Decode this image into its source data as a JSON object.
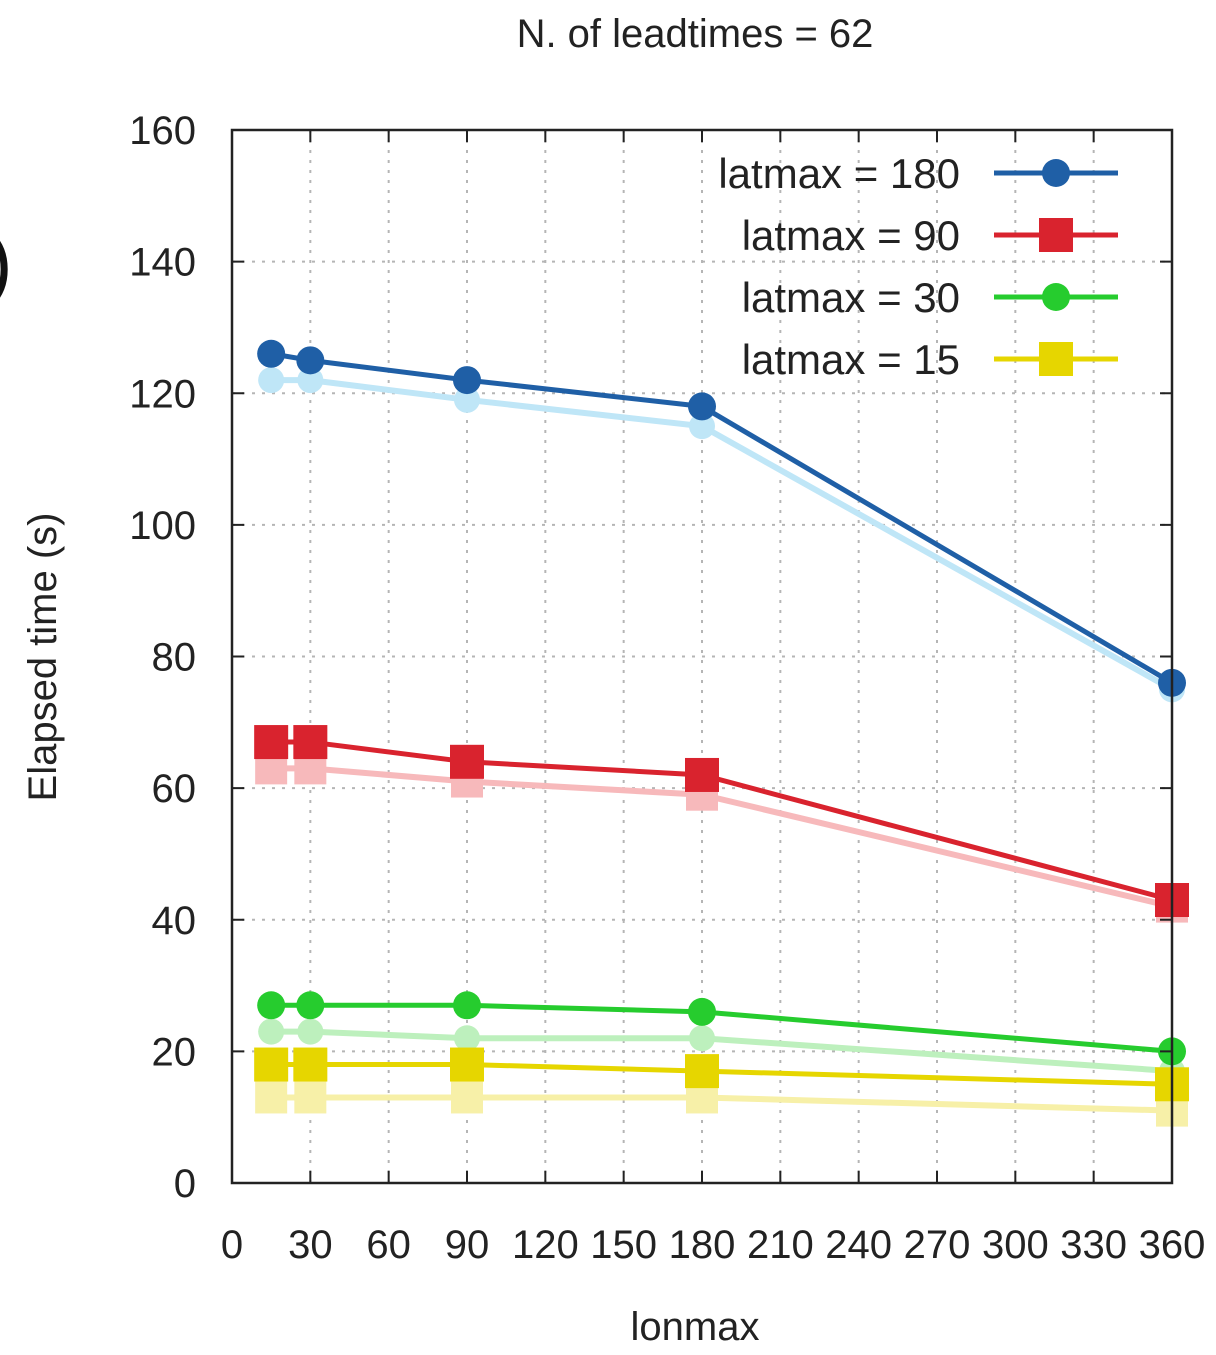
{
  "edge_fragment": ")",
  "chart_data": {
    "type": "line",
    "title": "N. of leadtimes = 62",
    "xlabel": "lonmax",
    "ylabel": "Elapsed time (s)",
    "xlim": [
      0,
      360
    ],
    "ylim": [
      0,
      160
    ],
    "xticks": [
      0,
      30,
      60,
      90,
      120,
      150,
      180,
      210,
      240,
      270,
      300,
      330,
      360
    ],
    "yticks": [
      0,
      20,
      40,
      60,
      80,
      100,
      120,
      140,
      160
    ],
    "grid": true,
    "legend_position": "top-right",
    "x": [
      15,
      30,
      90,
      180,
      360
    ],
    "series": [
      {
        "name": "latmax = 180",
        "color": "#1f5fa6",
        "faint_color": "#bfe6f7",
        "marker": "circle",
        "values": [
          126,
          125,
          122,
          118,
          76
        ],
        "faint_values": [
          122,
          122,
          119,
          115,
          75
        ]
      },
      {
        "name": "latmax = 90",
        "color": "#d9232e",
        "faint_color": "#f7b9bb",
        "marker": "square",
        "values": [
          67,
          67,
          64,
          62,
          43
        ],
        "faint_values": [
          63,
          63,
          61,
          59,
          42
        ]
      },
      {
        "name": "latmax = 30",
        "color": "#26cc2e",
        "faint_color": "#bdf0bd",
        "marker": "circle",
        "values": [
          27,
          27,
          27,
          26,
          20
        ],
        "faint_values": [
          23,
          23,
          22,
          22,
          17
        ]
      },
      {
        "name": "latmax = 15",
        "color": "#e6d600",
        "faint_color": "#f7f0a8",
        "marker": "square",
        "values": [
          18,
          18,
          18,
          17,
          15
        ],
        "faint_values": [
          13,
          13,
          13,
          13,
          11
        ]
      }
    ]
  }
}
